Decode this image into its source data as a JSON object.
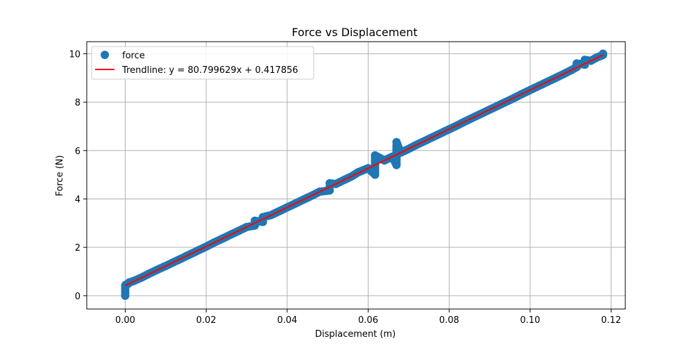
{
  "chart_data": {
    "type": "scatter",
    "title": "Force vs Displacement",
    "xlabel": "Displacement (m)",
    "ylabel": "Force (N)",
    "xlim": [
      -0.0095,
      0.1235
    ],
    "ylim": [
      -0.55,
      10.5
    ],
    "x_ticks": [
      0.0,
      0.02,
      0.04,
      0.06,
      0.08,
      0.1,
      0.12
    ],
    "x_tick_labels": [
      "0.00",
      "0.02",
      "0.04",
      "0.06",
      "0.08",
      "0.10",
      "0.12"
    ],
    "y_ticks": [
      0,
      2,
      4,
      6,
      8,
      10
    ],
    "y_tick_labels": [
      "0",
      "2",
      "4",
      "6",
      "8",
      "10"
    ],
    "grid": true,
    "legend_position": "top-left",
    "legend": [
      {
        "label": "force",
        "kind": "marker",
        "color": "#1f77b4"
      },
      {
        "label": "Trendline: y = 80.799629x + 0.417856",
        "kind": "line",
        "color": "#ff0000"
      }
    ],
    "series": [
      {
        "name": "force",
        "kind": "scatter",
        "color": "#1f77b4",
        "points": [
          [
            0.0,
            0.0
          ],
          [
            0.0,
            0.1
          ],
          [
            0.0,
            0.2
          ],
          [
            0.0,
            0.3
          ],
          [
            0.0,
            0.4
          ],
          [
            0.0001,
            0.45
          ],
          [
            0.0008,
            0.5
          ],
          [
            0.001,
            0.55
          ],
          [
            0.002,
            0.6
          ],
          [
            0.004,
            0.75
          ],
          [
            0.006,
            0.92
          ],
          [
            0.008,
            1.08
          ],
          [
            0.01,
            1.23
          ],
          [
            0.012,
            1.39
          ],
          [
            0.014,
            1.55
          ],
          [
            0.016,
            1.71
          ],
          [
            0.018,
            1.87
          ],
          [
            0.02,
            2.03
          ],
          [
            0.022,
            2.2
          ],
          [
            0.024,
            2.36
          ],
          [
            0.026,
            2.52
          ],
          [
            0.028,
            2.68
          ],
          [
            0.03,
            2.84
          ],
          [
            0.032,
            2.9
          ],
          [
            0.032,
            3.0
          ],
          [
            0.032,
            3.1
          ],
          [
            0.034,
            3.05
          ],
          [
            0.034,
            3.15
          ],
          [
            0.034,
            3.25
          ],
          [
            0.036,
            3.33
          ],
          [
            0.038,
            3.49
          ],
          [
            0.04,
            3.65
          ],
          [
            0.042,
            3.81
          ],
          [
            0.044,
            3.97
          ],
          [
            0.046,
            4.13
          ],
          [
            0.048,
            4.3
          ],
          [
            0.0505,
            4.35
          ],
          [
            0.0505,
            4.5
          ],
          [
            0.0505,
            4.65
          ],
          [
            0.052,
            4.62
          ],
          [
            0.054,
            4.78
          ],
          [
            0.056,
            4.94
          ],
          [
            0.0575,
            5.1
          ],
          [
            0.06,
            5.27
          ],
          [
            0.0617,
            5.0
          ],
          [
            0.0617,
            5.2
          ],
          [
            0.0617,
            5.4
          ],
          [
            0.0617,
            5.6
          ],
          [
            0.0617,
            5.8
          ],
          [
            0.064,
            5.59
          ],
          [
            0.066,
            5.75
          ],
          [
            0.067,
            5.4
          ],
          [
            0.067,
            5.6
          ],
          [
            0.067,
            5.8
          ],
          [
            0.067,
            6.0
          ],
          [
            0.067,
            6.2
          ],
          [
            0.067,
            6.35
          ],
          [
            0.068,
            5.91
          ],
          [
            0.07,
            6.07
          ],
          [
            0.072,
            6.24
          ],
          [
            0.074,
            6.4
          ],
          [
            0.076,
            6.56
          ],
          [
            0.078,
            6.72
          ],
          [
            0.08,
            6.88
          ],
          [
            0.082,
            7.04
          ],
          [
            0.084,
            7.21
          ],
          [
            0.086,
            7.37
          ],
          [
            0.088,
            7.53
          ],
          [
            0.09,
            7.69
          ],
          [
            0.092,
            7.85
          ],
          [
            0.094,
            8.01
          ],
          [
            0.096,
            8.17
          ],
          [
            0.098,
            8.34
          ],
          [
            0.1,
            8.5
          ],
          [
            0.101,
            8.58
          ],
          [
            0.102,
            8.66
          ],
          [
            0.104,
            8.82
          ],
          [
            0.106,
            8.98
          ],
          [
            0.108,
            9.14
          ],
          [
            0.11,
            9.31
          ],
          [
            0.1115,
            9.45
          ],
          [
            0.1115,
            9.6
          ],
          [
            0.1135,
            9.55
          ],
          [
            0.1135,
            9.75
          ],
          [
            0.115,
            9.71
          ],
          [
            0.1165,
            9.85
          ],
          [
            0.118,
            9.95
          ],
          [
            0.118,
            10.0
          ]
        ]
      },
      {
        "name": "Trendline: y = 80.799629x + 0.417856",
        "kind": "line",
        "color": "#ff0000",
        "slope": 80.799629,
        "intercept": 0.417856,
        "x_range": [
          0.0,
          0.118
        ]
      }
    ]
  }
}
